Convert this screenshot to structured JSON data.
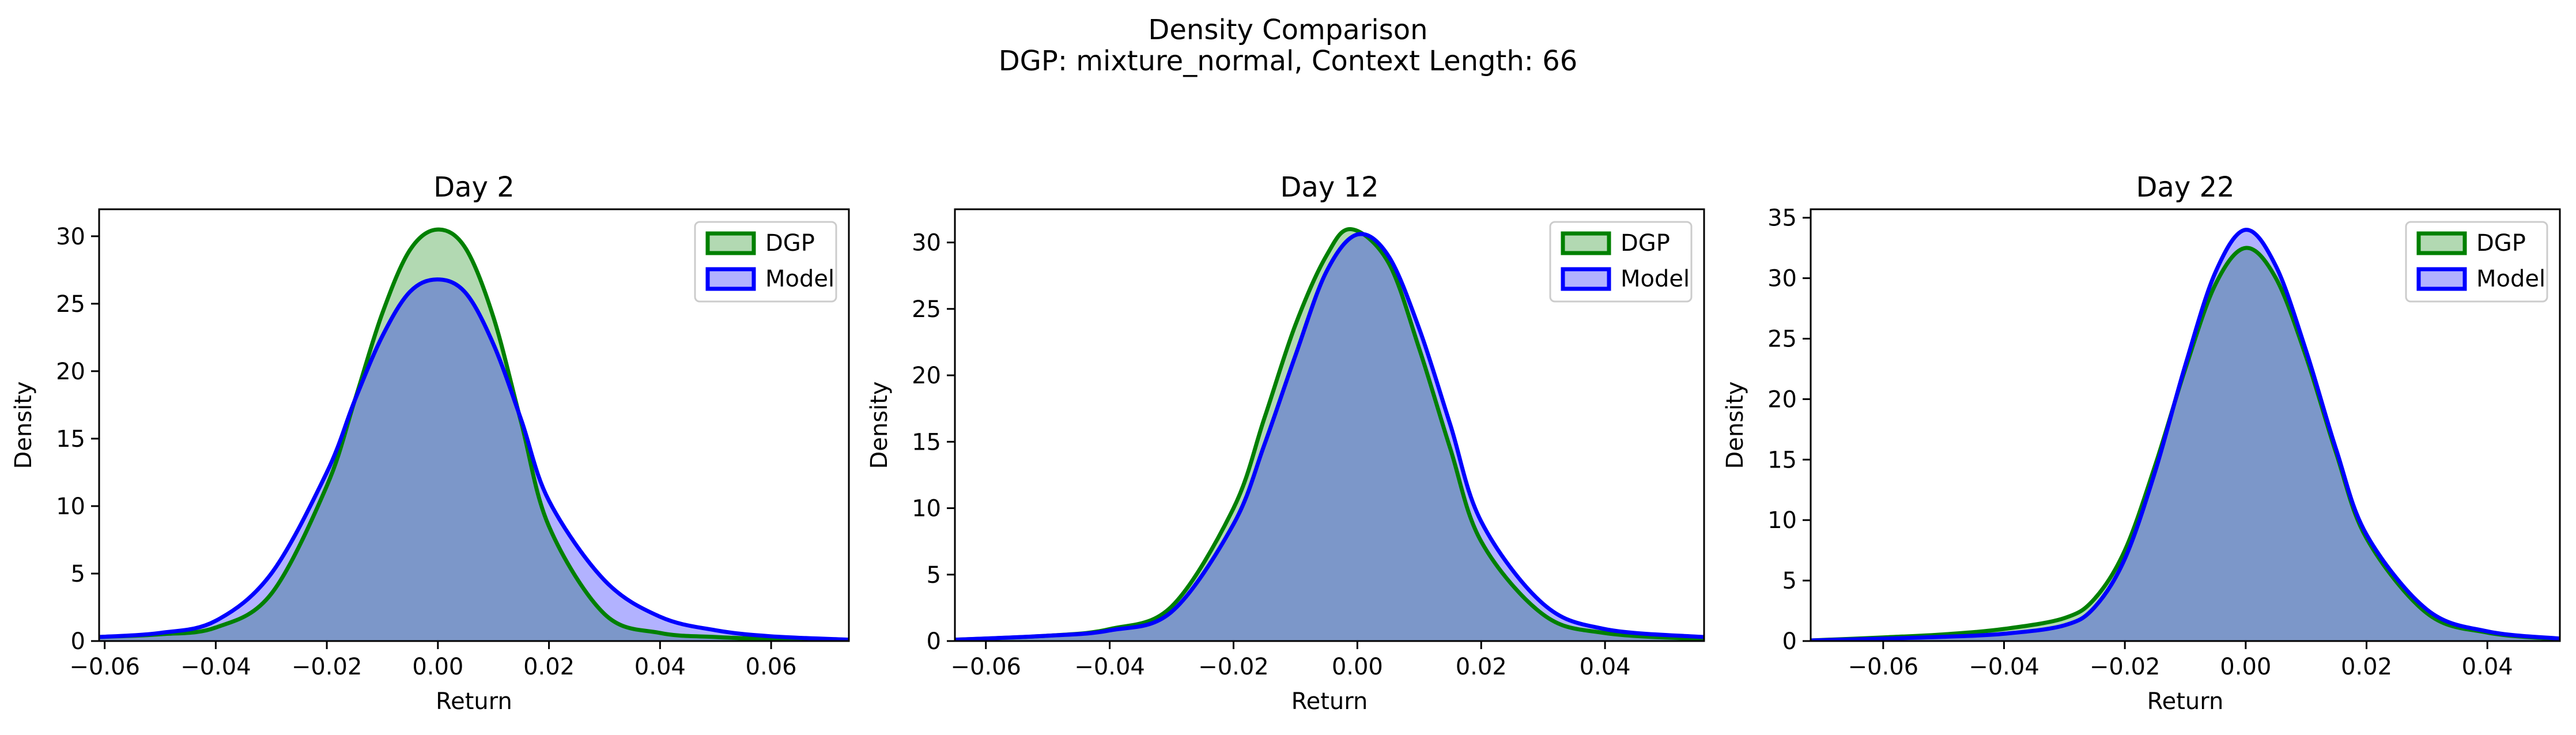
{
  "figure": {
    "title": "Density Comparison",
    "subtitle": "DGP: mixture_normal, Context Length: 66"
  },
  "colors": {
    "dgp_line": "#008000",
    "dgp_fill": "#008000",
    "model_line": "#0000ff",
    "model_fill": "#0000ff"
  },
  "chart_data": [
    {
      "type": "area",
      "title": "Day 2",
      "xlabel": "Return",
      "ylabel": "Density",
      "xlim": [
        -0.061,
        0.074
      ],
      "ylim": [
        0,
        32
      ],
      "xticks": [
        -0.06,
        -0.04,
        -0.02,
        0.0,
        0.02,
        0.04,
        0.06
      ],
      "xticklabels": [
        "−0.06",
        "−0.04",
        "−0.02",
        "0.00",
        "0.02",
        "0.04",
        "0.06"
      ],
      "yticks": [
        0,
        5,
        10,
        15,
        20,
        25,
        30
      ],
      "yticklabels": [
        "0",
        "5",
        "10",
        "15",
        "20",
        "25",
        "30"
      ],
      "legend": "top-right",
      "series": [
        {
          "name": "DGP",
          "color": "#008000",
          "x": [
            -0.061,
            -0.05,
            -0.04,
            -0.03,
            -0.02,
            -0.015,
            -0.01,
            -0.005,
            0.0,
            0.005,
            0.01,
            0.015,
            0.02,
            0.03,
            0.04,
            0.05,
            0.06,
            0.074
          ],
          "y": [
            0.3,
            0.5,
            1.0,
            3.5,
            11.5,
            17.8,
            24.3,
            29.0,
            30.5,
            29.1,
            24.0,
            16.2,
            8.5,
            2.0,
            0.6,
            0.3,
            0.15,
            0.05
          ]
        },
        {
          "name": "Model",
          "color": "#0000ff",
          "x": [
            -0.061,
            -0.05,
            -0.04,
            -0.03,
            -0.02,
            -0.015,
            -0.01,
            -0.005,
            0.0,
            0.005,
            0.01,
            0.015,
            0.02,
            0.03,
            0.04,
            0.05,
            0.06,
            0.074
          ],
          "y": [
            0.3,
            0.6,
            1.5,
            5.0,
            12.5,
            17.8,
            22.6,
            25.9,
            26.8,
            25.8,
            22.0,
            16.4,
            10.4,
            4.5,
            1.8,
            0.8,
            0.35,
            0.1
          ]
        }
      ]
    },
    {
      "type": "area",
      "title": "Day 12",
      "xlabel": "Return",
      "ylabel": "Density",
      "xlim": [
        -0.065,
        0.056
      ],
      "ylim": [
        0,
        32.5
      ],
      "xticks": [
        -0.06,
        -0.04,
        -0.02,
        0.0,
        0.02,
        0.04
      ],
      "xticklabels": [
        "−0.06",
        "−0.04",
        "−0.02",
        "0.00",
        "0.02",
        "0.04"
      ],
      "yticks": [
        0,
        5,
        10,
        15,
        20,
        25,
        30
      ],
      "yticklabels": [
        "0",
        "5",
        "10",
        "15",
        "20",
        "25",
        "30"
      ],
      "legend": "top-right",
      "series": [
        {
          "name": "DGP",
          "color": "#008000",
          "x": [
            -0.065,
            -0.05,
            -0.04,
            -0.03,
            -0.02,
            -0.015,
            -0.01,
            -0.005,
            -0.001,
            0.005,
            0.01,
            0.015,
            0.02,
            0.03,
            0.04,
            0.056
          ],
          "y": [
            0.1,
            0.4,
            0.9,
            2.6,
            10.0,
            16.8,
            23.8,
            29.0,
            31.0,
            28.5,
            22.0,
            14.5,
            7.5,
            2.0,
            0.6,
            0.15
          ]
        },
        {
          "name": "Model",
          "color": "#0000ff",
          "x": [
            -0.065,
            -0.05,
            -0.04,
            -0.03,
            -0.02,
            -0.015,
            -0.01,
            -0.005,
            0.0,
            0.005,
            0.01,
            0.015,
            0.02,
            0.03,
            0.04,
            0.056
          ],
          "y": [
            0.1,
            0.4,
            0.8,
            2.2,
            8.8,
            14.8,
            21.5,
            27.8,
            30.6,
            29.0,
            23.5,
            16.3,
            9.0,
            2.8,
            0.9,
            0.3
          ]
        }
      ]
    },
    {
      "type": "area",
      "title": "Day 22",
      "xlabel": "Return",
      "ylabel": "Density",
      "xlim": [
        -0.072,
        0.052
      ],
      "ylim": [
        0,
        35.7
      ],
      "xticks": [
        -0.06,
        -0.04,
        -0.02,
        0.0,
        0.02,
        0.04
      ],
      "xticklabels": [
        "−0.06",
        "−0.04",
        "−0.02",
        "0.00",
        "0.02",
        "0.04"
      ],
      "yticks": [
        0,
        5,
        10,
        15,
        20,
        25,
        30,
        35
      ],
      "yticklabels": [
        "0",
        "5",
        "10",
        "15",
        "20",
        "25",
        "30",
        "35"
      ],
      "legend": "top-right",
      "series": [
        {
          "name": "DGP",
          "color": "#008000",
          "x": [
            -0.072,
            -0.06,
            -0.05,
            -0.04,
            -0.03,
            -0.025,
            -0.02,
            -0.015,
            -0.01,
            -0.005,
            0.0,
            0.005,
            0.01,
            0.015,
            0.02,
            0.03,
            0.04,
            0.052
          ],
          "y": [
            0.05,
            0.3,
            0.55,
            1.0,
            1.9,
            3.5,
            7.5,
            14.5,
            22.5,
            29.5,
            32.5,
            30.0,
            23.5,
            15.5,
            8.5,
            2.3,
            0.7,
            0.15
          ]
        },
        {
          "name": "Model",
          "color": "#0000ff",
          "x": [
            -0.072,
            -0.06,
            -0.05,
            -0.04,
            -0.03,
            -0.025,
            -0.02,
            -0.015,
            -0.01,
            -0.005,
            0.0,
            0.005,
            0.01,
            0.015,
            0.02,
            0.03,
            0.04,
            0.052
          ],
          "y": [
            0.05,
            0.2,
            0.35,
            0.6,
            1.3,
            2.8,
            6.8,
            14.0,
            22.8,
            30.5,
            34.0,
            31.0,
            24.0,
            15.8,
            8.8,
            2.6,
            0.8,
            0.2
          ]
        }
      ]
    }
  ]
}
